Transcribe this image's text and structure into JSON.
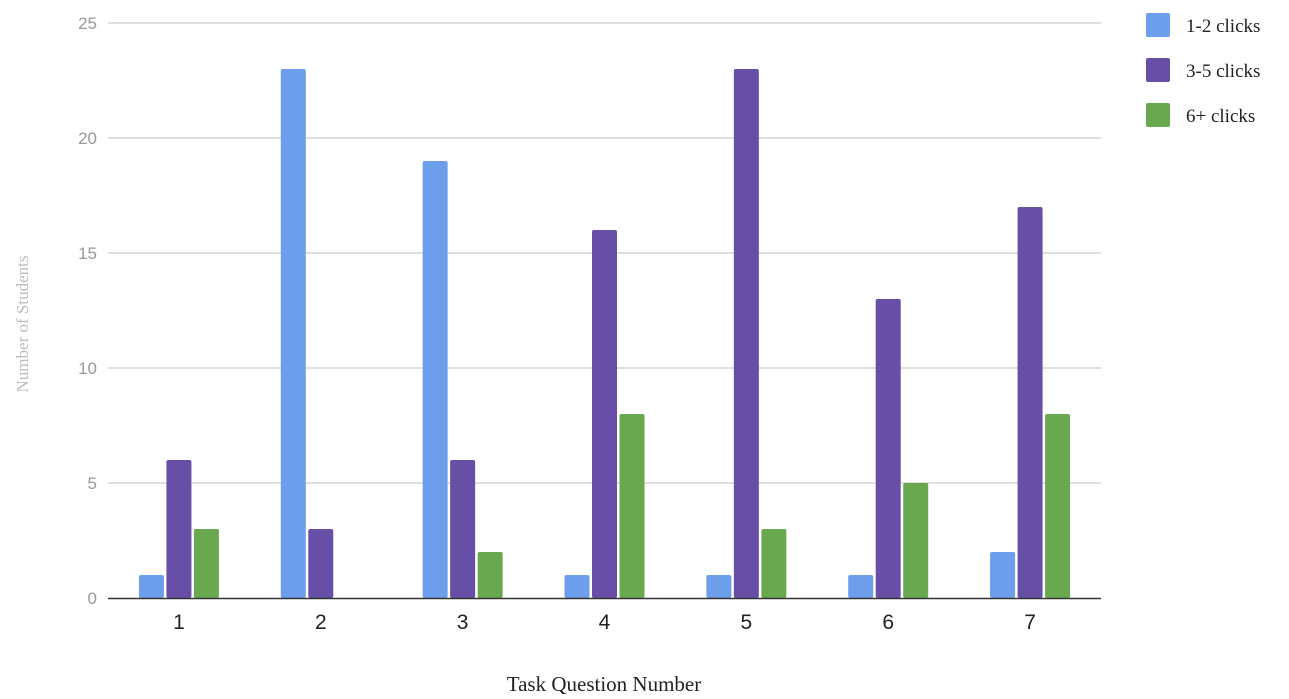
{
  "chart_data": {
    "type": "bar",
    "title": "",
    "xlabel": "Task Question Number",
    "ylabel": "Number of Students",
    "categories": [
      "1",
      "2",
      "3",
      "4",
      "5",
      "6",
      "7"
    ],
    "ylim": [
      0,
      25
    ],
    "yticks": [
      0,
      5,
      10,
      15,
      20,
      25
    ],
    "grid": true,
    "legend_position": "top-right",
    "series": [
      {
        "name": "1-2 clicks",
        "color": "#6d9eeb",
        "values": [
          1,
          23,
          19,
          1,
          1,
          1,
          2
        ]
      },
      {
        "name": "3-5 clicks",
        "color": "#674ea7",
        "values": [
          6,
          3,
          6,
          16,
          23,
          13,
          17
        ]
      },
      {
        "name": "6+ clicks",
        "color": "#6aa84f",
        "values": [
          3,
          0,
          2,
          8,
          3,
          5,
          8
        ]
      }
    ]
  }
}
